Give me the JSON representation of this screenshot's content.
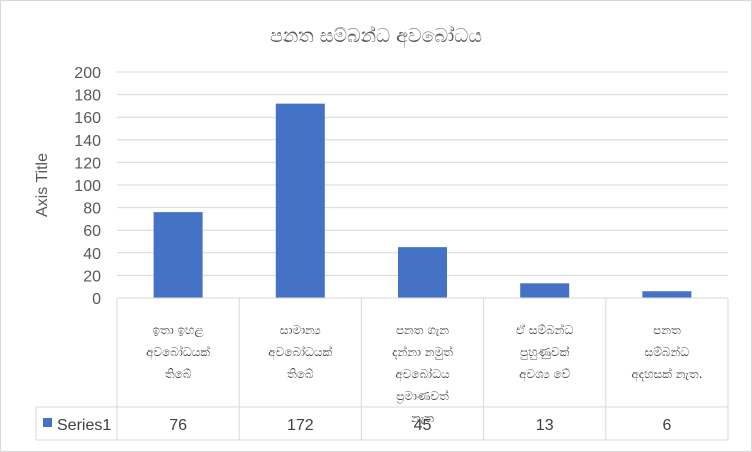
{
  "chart_data": {
    "type": "bar",
    "title": "පනත සම්බන්ධ අවබෝධය",
    "ylabel": "Axis Title",
    "xlabel": "",
    "ylim": [
      0,
      200
    ],
    "yticks": [
      0,
      20,
      40,
      60,
      80,
      100,
      120,
      140,
      160,
      180,
      200
    ],
    "grid": true,
    "legend": "data-table-left",
    "bar_color": "#4472C4",
    "categories": [
      "ඉතා ඉහළ අවබෝධයක් තිබේ",
      "සාමාන්‍ය අවබෝධයක් තිබේ",
      "පනත ගැන දන්නා නමුත් අවබෝධය ප්‍රමාණවත් නැත",
      "ඒ සම්බන්ධ පුහුණුවක් අවශ්‍ය වේ",
      "පනත සම්බන්ධ අදහසක් නැත."
    ],
    "category_lines": [
      [
        "ඉතා ඉහළ",
        "අවබෝධයක්",
        "තිබේ"
      ],
      [
        "සාමාන්‍ය",
        "අවබෝධයක්",
        "තිබේ"
      ],
      [
        "පනත ගැන",
        "දන්නා නමුත්",
        "අවබෝධය",
        "ප්‍රමාණවත්",
        "නැත"
      ],
      [
        "ඒ සම්බන්ධ",
        "පුහුණුවක්",
        "අවශ්‍ය වේ"
      ],
      [
        "පනත",
        "සම්බන්ධ",
        "අදහසක් නැත."
      ]
    ],
    "series": [
      {
        "name": "Series1",
        "values": [
          76,
          172,
          45,
          13,
          6
        ]
      }
    ]
  }
}
